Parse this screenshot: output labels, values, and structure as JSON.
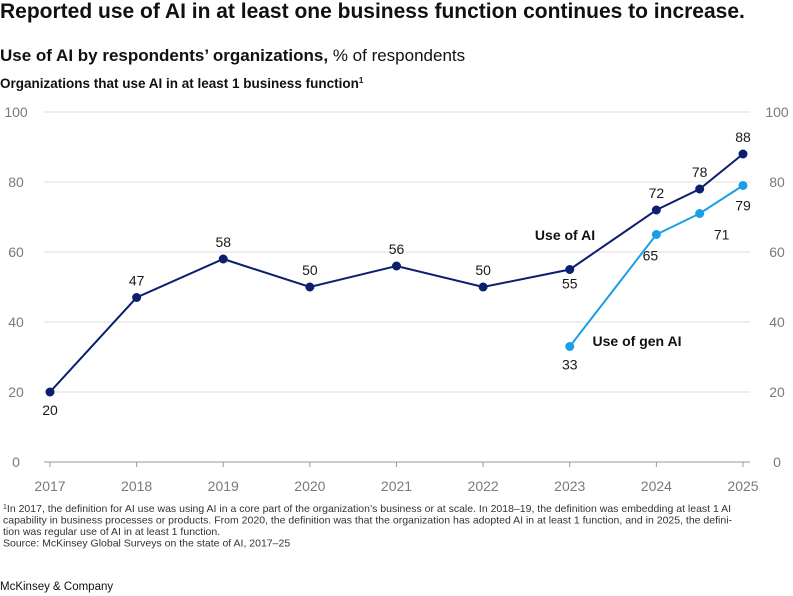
{
  "header": {
    "title": "Reported use of AI in at least one business function continues to increase.",
    "subtitle": "Use of AI by respondents’ organizations,",
    "subtitle_unit": "% of respondents"
  },
  "chart_data": {
    "type": "line",
    "title": "Organizations that use AI in at least 1 business function",
    "title_note": "1",
    "x": [
      2017,
      2018,
      2019,
      2020,
      2021,
      2022,
      2023,
      2024,
      2024.5,
      2025
    ],
    "series": [
      {
        "name": "Use of AI",
        "color": "#0b1f6e",
        "values": [
          20,
          47,
          58,
          50,
          56,
          50,
          55,
          72,
          78,
          88
        ]
      },
      {
        "name": "Use of gen AI",
        "color": "#1a9fe6",
        "values": [
          null,
          null,
          null,
          null,
          null,
          null,
          33,
          65,
          71,
          79
        ]
      }
    ],
    "xlim": [
      2017,
      2025
    ],
    "xticks": [
      2017,
      2018,
      2019,
      2020,
      2021,
      2022,
      2023,
      2024,
      2025
    ],
    "ylim": [
      0,
      100
    ],
    "yticks": [
      0,
      20,
      40,
      60,
      80,
      100
    ],
    "grid": true,
    "right_axis_labels": true
  },
  "footer": {
    "note_marker": "1",
    "note_lines": [
      "In 2017, the definition for AI use was using AI in a core part of the organization’s business or at scale. In 2018–19, the definition was embedding at least 1 AI",
      "capability in business processes or products. From 2020, the definition was that the organization has adopted AI in at least 1 function, and in 2025, the defini-",
      "tion was regular use of AI in at least 1 function."
    ],
    "source": "Source: McKinsey Global Surveys on the state of AI, 2017–25",
    "brand": "McKinsey & Company"
  }
}
